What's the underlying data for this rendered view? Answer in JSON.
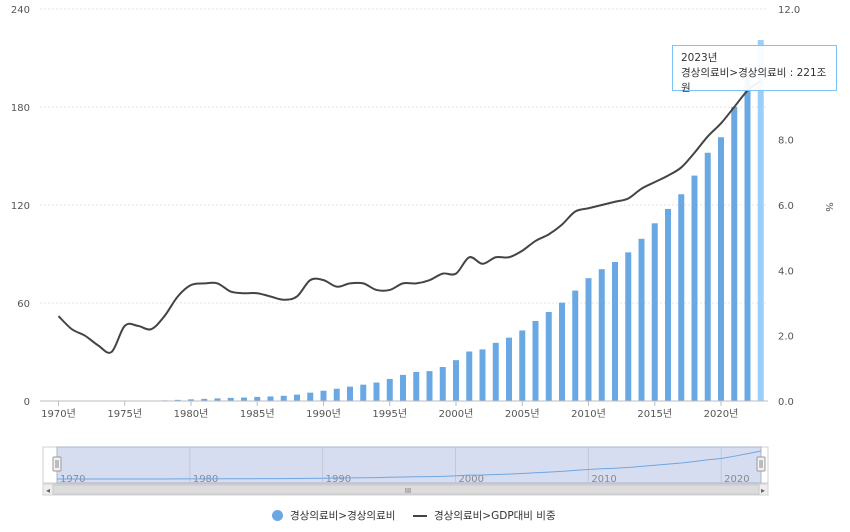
{
  "chart_data": {
    "type": "bar+line",
    "categories": [
      "1970",
      "1971",
      "1972",
      "1973",
      "1974",
      "1975",
      "1976",
      "1977",
      "1978",
      "1979",
      "1980",
      "1981",
      "1982",
      "1983",
      "1984",
      "1985",
      "1986",
      "1987",
      "1988",
      "1989",
      "1990",
      "1991",
      "1992",
      "1993",
      "1994",
      "1995",
      "1996",
      "1997",
      "1998",
      "1999",
      "2000",
      "2001",
      "2002",
      "2003",
      "2004",
      "2005",
      "2006",
      "2007",
      "2008",
      "2009",
      "2010",
      "2011",
      "2012",
      "2013",
      "2014",
      "2015",
      "2016",
      "2017",
      "2018",
      "2019",
      "2020",
      "2021",
      "2022",
      "2023"
    ],
    "x_tick_labels": [
      "1970년",
      "1975년",
      "1980년",
      "1985년",
      "1990년",
      "1995년",
      "2000년",
      "2005년",
      "2010년",
      "2015년",
      "2020년"
    ],
    "series": [
      {
        "name": "경상의료비>경상의료비",
        "type": "bar",
        "axis": "left",
        "color": "#6aa8e4",
        "highlight_color": "#9ccff7",
        "values": [
          0.1,
          0.1,
          0.1,
          0.1,
          0.1,
          0.2,
          0.2,
          0.3,
          0.4,
          0.7,
          1.0,
          1.3,
          1.6,
          1.9,
          2.1,
          2.5,
          2.8,
          3.2,
          3.9,
          5.1,
          6.3,
          7.5,
          8.8,
          10.0,
          11.3,
          13.5,
          16.0,
          17.8,
          18.3,
          20.8,
          25.0,
          30.3,
          31.6,
          35.6,
          38.8,
          43.2,
          49.0,
          54.5,
          60.2,
          67.6,
          75.2,
          80.7,
          85.1,
          91.0,
          99.3,
          108.8,
          117.6,
          126.6,
          138.0,
          152.0,
          161.5,
          180.0,
          200.0,
          221.0
        ]
      },
      {
        "name": "경상의료비>GDP대비 비중",
        "type": "line",
        "axis": "right",
        "color": "#444444",
        "values": [
          2.6,
          2.2,
          2.0,
          1.7,
          1.5,
          2.3,
          2.3,
          2.2,
          2.6,
          3.2,
          3.55,
          3.6,
          3.6,
          3.35,
          3.3,
          3.3,
          3.2,
          3.1,
          3.2,
          3.7,
          3.7,
          3.5,
          3.6,
          3.6,
          3.4,
          3.4,
          3.6,
          3.6,
          3.7,
          3.9,
          3.9,
          4.4,
          4.2,
          4.4,
          4.4,
          4.6,
          4.9,
          5.1,
          5.4,
          5.8,
          5.9,
          6.0,
          6.1,
          6.2,
          6.5,
          6.7,
          6.9,
          7.15,
          7.6,
          8.1,
          8.5,
          9.0,
          9.5,
          9.8
        ]
      }
    ],
    "y_left": {
      "min": 0,
      "max": 240,
      "ticks": [
        "0",
        "60",
        "120",
        "180",
        "240"
      ]
    },
    "y_right": {
      "min": 0,
      "max": 12,
      "ticks": [
        "0.0",
        "2.0",
        "4.0",
        "6.0",
        "8.0",
        "10.0",
        "12.0"
      ],
      "label": "%"
    },
    "navigator_labels": [
      "1970",
      "1980",
      "1990",
      "2000",
      "2010",
      "2020"
    ],
    "grid": true,
    "legend_position": "bottom"
  },
  "tooltip": {
    "year": "2023년",
    "text": "경상의료비>경상의료비 : 221조원"
  },
  "legend": {
    "bar_label": "경상의료비>경상의료비",
    "line_label": "경상의료비>GDP대비 비중"
  },
  "colors": {
    "bar": "#6aa8e4",
    "bar_highlight": "#9ccff7",
    "line": "#444444",
    "navigator_fill": "#d6ddf0",
    "navigator_line": "#6fa6e2"
  },
  "icons": {
    "scroll_left": "◂",
    "scroll_right": "▸",
    "scroll_grip": "III"
  }
}
